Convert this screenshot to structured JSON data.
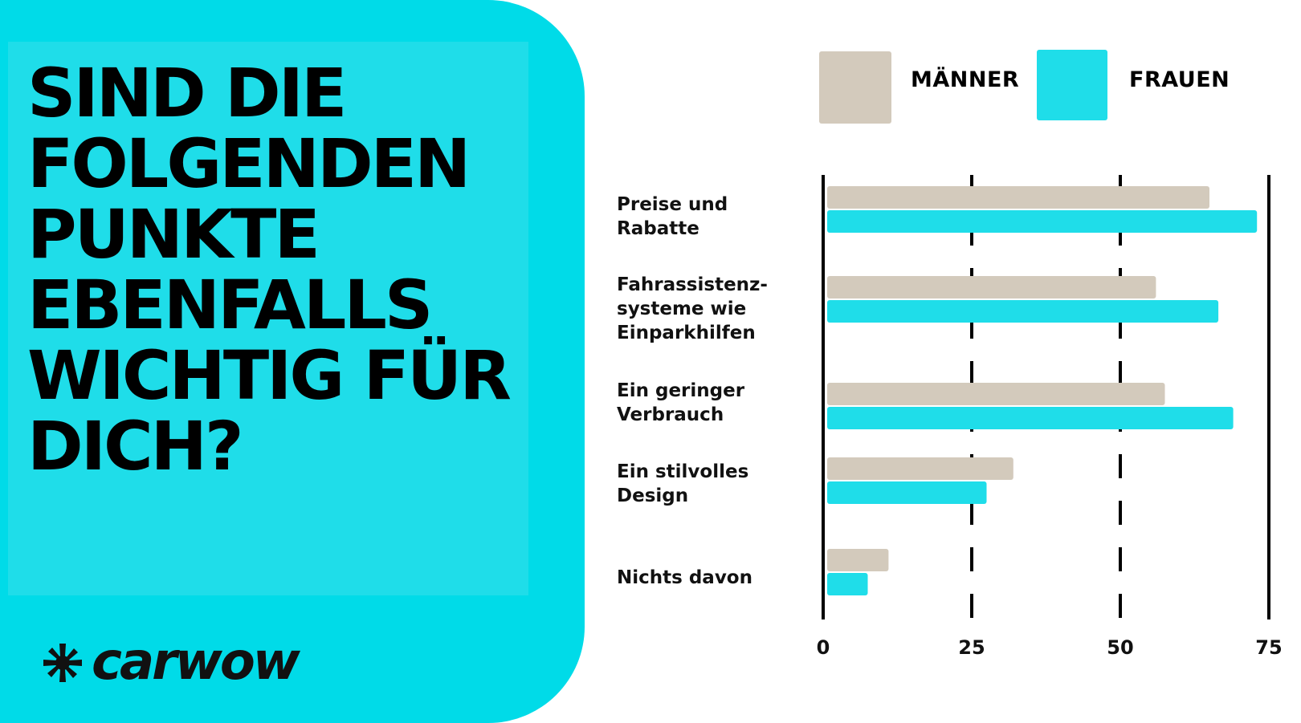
{
  "headline": "SIND DIE FOLGENDEN PUNKTE EBENFALLS WICHTIG FÜR DICH?",
  "brand": {
    "name": "carwow"
  },
  "colors": {
    "men": "#d3cabc",
    "women": "#1fdde9",
    "panel": "#00dbe8",
    "axis": "#000000"
  },
  "chart_data": {
    "type": "bar",
    "orientation": "horizontal",
    "categories": [
      "Preise und Rabatte",
      "Fahrassistenz-systeme wie Einparkhilfen",
      "Ein geringer Verbrauch",
      "Ein stilvolles Design",
      "Nichts davon"
    ],
    "series": [
      {
        "name": "MÄNNER",
        "values": [
          65,
          56,
          57.5,
          32,
          11
        ]
      },
      {
        "name": "FRAUEN",
        "values": [
          73,
          66.5,
          69,
          27.5,
          7.5
        ]
      }
    ],
    "xlim": [
      0,
      75
    ],
    "xticks": [
      "0",
      "25",
      "50",
      "75"
    ],
    "gridlines": "dashed",
    "legend": "top"
  }
}
